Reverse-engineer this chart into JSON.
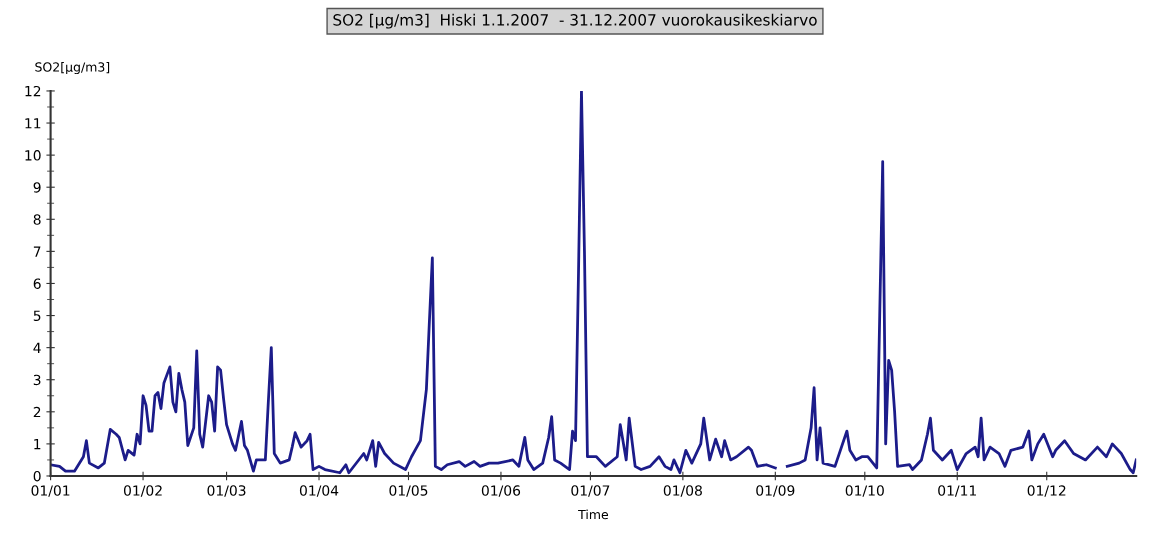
{
  "chart_data": {
    "type": "line",
    "title": "SO2 [µg/m3]  Hiski 1.1.2007  - 31.12.2007 vuorokausikeskiarvo",
    "xlabel": "Time",
    "ylabel": "SO2[µg/m3]",
    "x": [
      "2007-01-01",
      "2007-01-04",
      "2007-01-06",
      "2007-01-09",
      "2007-01-12",
      "2007-01-13",
      "2007-01-14",
      "2007-01-17",
      "2007-01-19",
      "2007-01-21",
      "2007-01-23",
      "2007-01-24",
      "2007-01-26",
      "2007-01-27",
      "2007-01-29",
      "2007-01-30",
      "2007-01-31",
      "2007-02-01",
      "2007-02-02",
      "2007-02-03",
      "2007-02-04",
      "2007-02-05",
      "2007-02-06",
      "2007-02-07",
      "2007-02-08",
      "2007-02-10",
      "2007-02-11",
      "2007-02-12",
      "2007-02-13",
      "2007-02-14",
      "2007-02-15",
      "2007-02-16",
      "2007-02-18",
      "2007-02-19",
      "2007-02-20",
      "2007-02-21",
      "2007-02-23",
      "2007-02-24",
      "2007-02-25",
      "2007-02-26",
      "2007-02-27",
      "2007-02-28",
      "2007-03-01",
      "2007-03-03",
      "2007-03-04",
      "2007-03-06",
      "2007-03-07",
      "2007-03-08",
      "2007-03-10",
      "2007-03-11",
      "2007-03-14",
      "2007-03-15",
      "2007-03-16",
      "2007-03-17",
      "2007-03-19",
      "2007-03-22",
      "2007-03-23",
      "2007-03-24",
      "2007-03-26",
      "2007-03-28",
      "2007-03-29",
      "2007-03-30",
      "2007-04-01",
      "2007-04-03",
      "2007-04-08",
      "2007-04-10",
      "2007-04-11",
      "2007-04-16",
      "2007-04-17",
      "2007-04-19",
      "2007-04-20",
      "2007-04-21",
      "2007-04-23",
      "2007-04-26",
      "2007-04-30",
      "2007-05-02",
      "2007-05-05",
      "2007-05-07",
      "2007-05-08",
      "2007-05-09",
      "2007-05-10",
      "2007-05-12",
      "2007-05-14",
      "2007-05-18",
      "2007-05-20",
      "2007-05-23",
      "2007-05-25",
      "2007-05-28",
      "2007-05-31",
      "2007-06-05",
      "2007-06-07",
      "2007-06-09",
      "2007-06-10",
      "2007-06-12",
      "2007-06-15",
      "2007-06-17",
      "2007-06-18",
      "2007-06-19",
      "2007-06-21",
      "2007-06-24",
      "2007-06-25",
      "2007-06-26",
      "2007-06-27",
      "2007-06-28",
      "2007-06-29",
      "2007-06-30",
      "2007-07-01",
      "2007-07-03",
      "2007-07-06",
      "2007-07-10",
      "2007-07-11",
      "2007-07-13",
      "2007-07-14",
      "2007-07-16",
      "2007-07-18",
      "2007-07-21",
      "2007-07-24",
      "2007-07-26",
      "2007-07-28",
      "2007-07-29",
      "2007-07-31",
      "2007-08-02",
      "2007-08-04",
      "2007-08-07",
      "2007-08-08",
      "2007-08-10",
      "2007-08-12",
      "2007-08-14",
      "2007-08-15",
      "2007-08-17",
      "2007-08-19",
      "2007-08-23",
      "2007-08-24",
      "2007-08-26",
      "2007-08-29",
      "2007-09-01",
      "2007-09-03",
      "2007-09-05",
      "2007-09-09",
      "2007-09-11",
      "2007-09-13",
      "2007-09-14",
      "2007-09-15",
      "2007-09-16",
      "2007-09-17",
      "2007-09-21",
      "2007-09-25",
      "2007-09-26",
      "2007-09-28",
      "2007-09-30",
      "2007-10-02",
      "2007-10-05",
      "2007-10-06",
      "2007-10-07",
      "2007-10-08",
      "2007-10-09",
      "2007-10-10",
      "2007-10-11",
      "2007-10-12",
      "2007-10-16",
      "2007-10-17",
      "2007-10-20",
      "2007-10-22",
      "2007-10-23",
      "2007-10-24",
      "2007-10-27",
      "2007-10-30",
      "2007-11-01",
      "2007-11-04",
      "2007-11-07",
      "2007-11-08",
      "2007-11-09",
      "2007-11-10",
      "2007-11-12",
      "2007-11-15",
      "2007-11-17",
      "2007-11-19",
      "2007-11-23",
      "2007-11-25",
      "2007-11-26",
      "2007-11-28",
      "2007-11-30",
      "2007-12-03",
      "2007-12-04",
      "2007-12-07",
      "2007-12-10",
      "2007-12-14",
      "2007-12-18",
      "2007-12-21",
      "2007-12-23",
      "2007-12-26",
      "2007-12-29",
      "2007-12-30",
      "2007-12-31"
    ],
    "series": [
      {
        "color": "#1c1c8a",
        "values": [
          0.35,
          0.3,
          0.15,
          0.15,
          0.6,
          1.1,
          0.4,
          0.25,
          0.4,
          1.45,
          1.3,
          1.2,
          0.5,
          0.8,
          0.65,
          1.3,
          1.0,
          2.5,
          2.2,
          1.4,
          1.4,
          2.5,
          2.6,
          2.1,
          2.9,
          3.4,
          2.3,
          2.0,
          3.2,
          2.7,
          2.3,
          0.95,
          1.5,
          3.9,
          1.3,
          0.9,
          2.5,
          2.3,
          1.4,
          3.4,
          3.3,
          2.4,
          1.6,
          1.0,
          0.8,
          1.7,
          0.95,
          0.8,
          0.15,
          0.5,
          0.5,
          2.3,
          4.0,
          0.7,
          0.4,
          0.5,
          0.9,
          1.35,
          0.9,
          1.1,
          1.3,
          0.2,
          0.3,
          0.2,
          0.1,
          0.35,
          0.1,
          0.7,
          0.5,
          1.1,
          0.3,
          1.05,
          0.7,
          0.4,
          0.2,
          0.6,
          1.1,
          2.7,
          4.8,
          6.8,
          0.3,
          0.2,
          0.35,
          0.45,
          0.3,
          0.45,
          0.3,
          0.4,
          0.4,
          0.5,
          0.3,
          1.2,
          0.5,
          0.2,
          0.4,
          1.2,
          1.85,
          0.5,
          0.4,
          0.2,
          1.4,
          1.1,
          6.3,
          12.0,
          7.0,
          0.6,
          0.6,
          0.6,
          0.3,
          0.6,
          1.6,
          0.5,
          1.8,
          0.3,
          0.2,
          0.3,
          0.6,
          0.3,
          0.2,
          0.5,
          0.1,
          0.8,
          0.4,
          1.0,
          1.8,
          0.5,
          1.15,
          0.6,
          1.1,
          0.5,
          0.6,
          0.9,
          0.8,
          0.3,
          0.35,
          0.25,
          null,
          0.3,
          0.4,
          0.5,
          1.5,
          2.75,
          0.5,
          1.5,
          0.4,
          0.3,
          1.4,
          0.8,
          0.5,
          0.6,
          0.6,
          0.25,
          5.0,
          9.8,
          1.0,
          3.6,
          3.3,
          2.0,
          0.3,
          0.35,
          0.2,
          0.5,
          1.3,
          1.8,
          0.8,
          0.5,
          0.8,
          0.2,
          0.7,
          0.9,
          0.6,
          1.8,
          0.5,
          0.9,
          0.7,
          0.3,
          0.8,
          0.9,
          1.4,
          0.5,
          1.0,
          1.3,
          0.6,
          0.8,
          1.1,
          0.7,
          0.5,
          0.9,
          0.6,
          1.0,
          0.7,
          0.2,
          0.1,
          0.5
        ]
      }
    ],
    "xlim": [
      "2007-01-01",
      "2007-12-31"
    ],
    "xticks": [
      {
        "value": "2007-01-01",
        "label": "01/01"
      },
      {
        "value": "2007-02-01",
        "label": "01/02"
      },
      {
        "value": "2007-03-01",
        "label": "01/03"
      },
      {
        "value": "2007-04-01",
        "label": "01/04"
      },
      {
        "value": "2007-05-01",
        "label": "01/05"
      },
      {
        "value": "2007-06-01",
        "label": "01/06"
      },
      {
        "value": "2007-07-01",
        "label": "01/07"
      },
      {
        "value": "2007-08-01",
        "label": "01/08"
      },
      {
        "value": "2007-09-01",
        "label": "01/09"
      },
      {
        "value": "2007-10-01",
        "label": "01/10"
      },
      {
        "value": "2007-11-01",
        "label": "01/11"
      },
      {
        "value": "2007-12-01",
        "label": "01/12"
      }
    ],
    "ylim": [
      0,
      12
    ],
    "yticks": [
      0,
      1,
      2,
      3,
      4,
      5,
      6,
      7,
      8,
      9,
      10,
      11,
      12
    ],
    "grid": false,
    "legend": false,
    "marker": "none",
    "line_style": "solid"
  }
}
